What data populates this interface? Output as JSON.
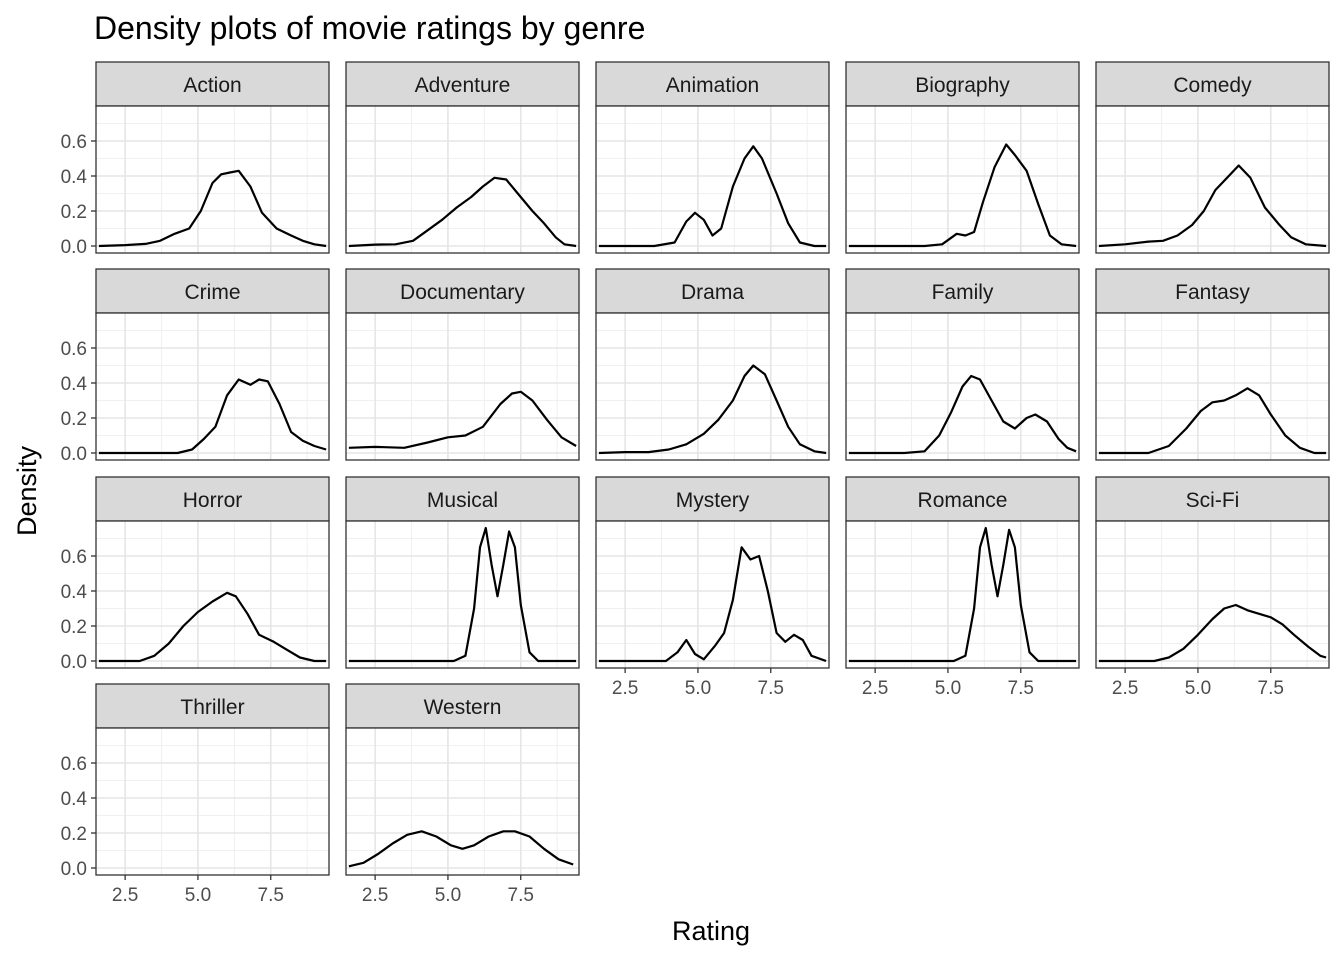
{
  "chart_data": {
    "type": "area",
    "title": "Density plots of movie ratings by genre",
    "xlabel": "Rating",
    "ylabel": "Density",
    "xlim": [
      1.5,
      9.5
    ],
    "ylim": [
      -0.04,
      0.8
    ],
    "x_ticks": [
      "2.5",
      "5.0",
      "7.5"
    ],
    "x_tick_values": [
      2.5,
      5.0,
      7.5
    ],
    "y_ticks": [
      "0.0",
      "0.2",
      "0.4",
      "0.6"
    ],
    "y_tick_values": [
      0.0,
      0.2,
      0.4,
      0.6
    ],
    "grid": true,
    "legend": "none",
    "line_color": "#000000",
    "strip_fill": "#d9d9d9",
    "panels": [
      {
        "genre": "Action",
        "points": [
          [
            1.6,
            0.0
          ],
          [
            2.5,
            0.005
          ],
          [
            3.2,
            0.012
          ],
          [
            3.7,
            0.03
          ],
          [
            4.2,
            0.07
          ],
          [
            4.7,
            0.1
          ],
          [
            5.1,
            0.2
          ],
          [
            5.5,
            0.36
          ],
          [
            5.8,
            0.41
          ],
          [
            6.1,
            0.42
          ],
          [
            6.4,
            0.43
          ],
          [
            6.8,
            0.34
          ],
          [
            7.2,
            0.19
          ],
          [
            7.7,
            0.1
          ],
          [
            8.2,
            0.06
          ],
          [
            8.6,
            0.03
          ],
          [
            9.0,
            0.01
          ],
          [
            9.4,
            0.0
          ]
        ]
      },
      {
        "genre": "Adventure",
        "points": [
          [
            1.6,
            0.0
          ],
          [
            2.5,
            0.008
          ],
          [
            3.2,
            0.01
          ],
          [
            3.8,
            0.03
          ],
          [
            4.3,
            0.09
          ],
          [
            4.8,
            0.15
          ],
          [
            5.3,
            0.22
          ],
          [
            5.8,
            0.28
          ],
          [
            6.2,
            0.34
          ],
          [
            6.6,
            0.39
          ],
          [
            7.0,
            0.38
          ],
          [
            7.4,
            0.3
          ],
          [
            7.9,
            0.2
          ],
          [
            8.3,
            0.13
          ],
          [
            8.7,
            0.05
          ],
          [
            9.0,
            0.01
          ],
          [
            9.4,
            0.0
          ]
        ]
      },
      {
        "genre": "Animation",
        "points": [
          [
            1.6,
            0.0
          ],
          [
            3.5,
            0.0
          ],
          [
            4.2,
            0.02
          ],
          [
            4.6,
            0.14
          ],
          [
            4.9,
            0.19
          ],
          [
            5.2,
            0.15
          ],
          [
            5.5,
            0.06
          ],
          [
            5.8,
            0.1
          ],
          [
            6.2,
            0.34
          ],
          [
            6.6,
            0.5
          ],
          [
            6.9,
            0.57
          ],
          [
            7.2,
            0.5
          ],
          [
            7.7,
            0.3
          ],
          [
            8.1,
            0.13
          ],
          [
            8.5,
            0.02
          ],
          [
            9.0,
            0.0
          ],
          [
            9.4,
            0.0
          ]
        ]
      },
      {
        "genre": "Biography",
        "points": [
          [
            1.6,
            0.0
          ],
          [
            4.2,
            0.0
          ],
          [
            4.8,
            0.01
          ],
          [
            5.3,
            0.07
          ],
          [
            5.6,
            0.06
          ],
          [
            5.9,
            0.08
          ],
          [
            6.2,
            0.25
          ],
          [
            6.6,
            0.45
          ],
          [
            7.0,
            0.58
          ],
          [
            7.3,
            0.52
          ],
          [
            7.7,
            0.43
          ],
          [
            8.1,
            0.24
          ],
          [
            8.5,
            0.06
          ],
          [
            8.9,
            0.01
          ],
          [
            9.4,
            0.0
          ]
        ]
      },
      {
        "genre": "Comedy",
        "points": [
          [
            1.6,
            0.0
          ],
          [
            2.5,
            0.01
          ],
          [
            3.3,
            0.025
          ],
          [
            3.8,
            0.03
          ],
          [
            4.3,
            0.06
          ],
          [
            4.8,
            0.12
          ],
          [
            5.2,
            0.2
          ],
          [
            5.6,
            0.32
          ],
          [
            6.0,
            0.39
          ],
          [
            6.4,
            0.46
          ],
          [
            6.8,
            0.39
          ],
          [
            7.3,
            0.22
          ],
          [
            7.8,
            0.12
          ],
          [
            8.2,
            0.05
          ],
          [
            8.7,
            0.01
          ],
          [
            9.4,
            0.0
          ]
        ]
      },
      {
        "genre": "Crime",
        "points": [
          [
            1.6,
            0.0
          ],
          [
            4.3,
            0.0
          ],
          [
            4.8,
            0.02
          ],
          [
            5.2,
            0.08
          ],
          [
            5.6,
            0.15
          ],
          [
            6.0,
            0.33
          ],
          [
            6.4,
            0.42
          ],
          [
            6.8,
            0.39
          ],
          [
            7.1,
            0.42
          ],
          [
            7.4,
            0.41
          ],
          [
            7.8,
            0.28
          ],
          [
            8.2,
            0.12
          ],
          [
            8.6,
            0.07
          ],
          [
            9.0,
            0.04
          ],
          [
            9.4,
            0.02
          ]
        ]
      },
      {
        "genre": "Documentary",
        "points": [
          [
            1.6,
            0.03
          ],
          [
            2.5,
            0.035
          ],
          [
            3.5,
            0.03
          ],
          [
            4.3,
            0.06
          ],
          [
            5.0,
            0.09
          ],
          [
            5.6,
            0.1
          ],
          [
            6.2,
            0.15
          ],
          [
            6.8,
            0.28
          ],
          [
            7.2,
            0.34
          ],
          [
            7.5,
            0.35
          ],
          [
            7.9,
            0.3
          ],
          [
            8.4,
            0.19
          ],
          [
            8.9,
            0.09
          ],
          [
            9.4,
            0.04
          ]
        ]
      },
      {
        "genre": "Drama",
        "points": [
          [
            1.6,
            0.0
          ],
          [
            2.5,
            0.005
          ],
          [
            3.3,
            0.005
          ],
          [
            4.0,
            0.02
          ],
          [
            4.6,
            0.05
          ],
          [
            5.2,
            0.11
          ],
          [
            5.7,
            0.19
          ],
          [
            6.2,
            0.3
          ],
          [
            6.6,
            0.44
          ],
          [
            6.9,
            0.5
          ],
          [
            7.3,
            0.45
          ],
          [
            7.7,
            0.3
          ],
          [
            8.1,
            0.15
          ],
          [
            8.5,
            0.05
          ],
          [
            9.0,
            0.01
          ],
          [
            9.4,
            0.0
          ]
        ]
      },
      {
        "genre": "Family",
        "points": [
          [
            1.6,
            0.0
          ],
          [
            3.5,
            0.0
          ],
          [
            4.2,
            0.01
          ],
          [
            4.7,
            0.1
          ],
          [
            5.1,
            0.23
          ],
          [
            5.5,
            0.38
          ],
          [
            5.8,
            0.44
          ],
          [
            6.1,
            0.42
          ],
          [
            6.5,
            0.3
          ],
          [
            6.9,
            0.18
          ],
          [
            7.3,
            0.14
          ],
          [
            7.7,
            0.2
          ],
          [
            8.0,
            0.22
          ],
          [
            8.4,
            0.18
          ],
          [
            8.8,
            0.08
          ],
          [
            9.1,
            0.03
          ],
          [
            9.4,
            0.01
          ]
        ]
      },
      {
        "genre": "Fantasy",
        "points": [
          [
            1.6,
            0.0
          ],
          [
            3.3,
            0.0
          ],
          [
            4.0,
            0.04
          ],
          [
            4.6,
            0.14
          ],
          [
            5.1,
            0.24
          ],
          [
            5.5,
            0.29
          ],
          [
            5.9,
            0.3
          ],
          [
            6.3,
            0.33
          ],
          [
            6.7,
            0.37
          ],
          [
            7.1,
            0.33
          ],
          [
            7.5,
            0.22
          ],
          [
            8.0,
            0.1
          ],
          [
            8.5,
            0.03
          ],
          [
            9.0,
            0.0
          ],
          [
            9.4,
            0.0
          ]
        ]
      },
      {
        "genre": "Horror",
        "points": [
          [
            1.6,
            0.0
          ],
          [
            3.0,
            0.0
          ],
          [
            3.5,
            0.03
          ],
          [
            4.0,
            0.1
          ],
          [
            4.5,
            0.2
          ],
          [
            5.0,
            0.28
          ],
          [
            5.5,
            0.34
          ],
          [
            6.0,
            0.39
          ],
          [
            6.3,
            0.37
          ],
          [
            6.7,
            0.27
          ],
          [
            7.1,
            0.15
          ],
          [
            7.6,
            0.11
          ],
          [
            8.0,
            0.07
          ],
          [
            8.5,
            0.02
          ],
          [
            9.0,
            0.0
          ],
          [
            9.4,
            0.0
          ]
        ]
      },
      {
        "genre": "Musical",
        "points": [
          [
            1.6,
            0.0
          ],
          [
            5.2,
            0.0
          ],
          [
            5.6,
            0.03
          ],
          [
            5.9,
            0.3
          ],
          [
            6.1,
            0.65
          ],
          [
            6.3,
            0.76
          ],
          [
            6.5,
            0.55
          ],
          [
            6.7,
            0.37
          ],
          [
            6.9,
            0.55
          ],
          [
            7.1,
            0.74
          ],
          [
            7.3,
            0.65
          ],
          [
            7.5,
            0.32
          ],
          [
            7.8,
            0.05
          ],
          [
            8.1,
            0.0
          ],
          [
            9.4,
            0.0
          ]
        ]
      },
      {
        "genre": "Mystery",
        "points": [
          [
            1.6,
            0.0
          ],
          [
            3.9,
            0.0
          ],
          [
            4.3,
            0.05
          ],
          [
            4.6,
            0.12
          ],
          [
            4.9,
            0.04
          ],
          [
            5.2,
            0.01
          ],
          [
            5.6,
            0.09
          ],
          [
            5.9,
            0.16
          ],
          [
            6.2,
            0.35
          ],
          [
            6.5,
            0.65
          ],
          [
            6.8,
            0.58
          ],
          [
            7.1,
            0.6
          ],
          [
            7.4,
            0.4
          ],
          [
            7.7,
            0.16
          ],
          [
            8.0,
            0.11
          ],
          [
            8.3,
            0.15
          ],
          [
            8.6,
            0.12
          ],
          [
            8.9,
            0.03
          ],
          [
            9.4,
            0.0
          ]
        ]
      },
      {
        "genre": "Romance",
        "points": [
          [
            1.6,
            0.0
          ],
          [
            5.2,
            0.0
          ],
          [
            5.6,
            0.03
          ],
          [
            5.9,
            0.3
          ],
          [
            6.1,
            0.65
          ],
          [
            6.3,
            0.76
          ],
          [
            6.5,
            0.55
          ],
          [
            6.7,
            0.37
          ],
          [
            6.9,
            0.55
          ],
          [
            7.1,
            0.75
          ],
          [
            7.3,
            0.65
          ],
          [
            7.5,
            0.32
          ],
          [
            7.8,
            0.05
          ],
          [
            8.1,
            0.0
          ],
          [
            9.4,
            0.0
          ]
        ]
      },
      {
        "genre": "Sci-Fi",
        "points": [
          [
            1.6,
            0.0
          ],
          [
            3.5,
            0.0
          ],
          [
            4.0,
            0.02
          ],
          [
            4.5,
            0.07
          ],
          [
            5.0,
            0.15
          ],
          [
            5.5,
            0.24
          ],
          [
            5.9,
            0.3
          ],
          [
            6.3,
            0.32
          ],
          [
            6.7,
            0.29
          ],
          [
            7.1,
            0.27
          ],
          [
            7.5,
            0.25
          ],
          [
            7.9,
            0.21
          ],
          [
            8.3,
            0.15
          ],
          [
            8.8,
            0.08
          ],
          [
            9.2,
            0.03
          ],
          [
            9.4,
            0.02
          ]
        ]
      },
      {
        "genre": "Thriller",
        "points": []
      },
      {
        "genre": "Western",
        "points": [
          [
            1.6,
            0.01
          ],
          [
            2.1,
            0.03
          ],
          [
            2.6,
            0.08
          ],
          [
            3.1,
            0.14
          ],
          [
            3.6,
            0.19
          ],
          [
            4.1,
            0.21
          ],
          [
            4.6,
            0.18
          ],
          [
            5.1,
            0.13
          ],
          [
            5.5,
            0.11
          ],
          [
            5.9,
            0.13
          ],
          [
            6.4,
            0.18
          ],
          [
            6.9,
            0.21
          ],
          [
            7.3,
            0.21
          ],
          [
            7.8,
            0.18
          ],
          [
            8.3,
            0.11
          ],
          [
            8.8,
            0.05
          ],
          [
            9.3,
            0.02
          ]
        ]
      }
    ]
  }
}
